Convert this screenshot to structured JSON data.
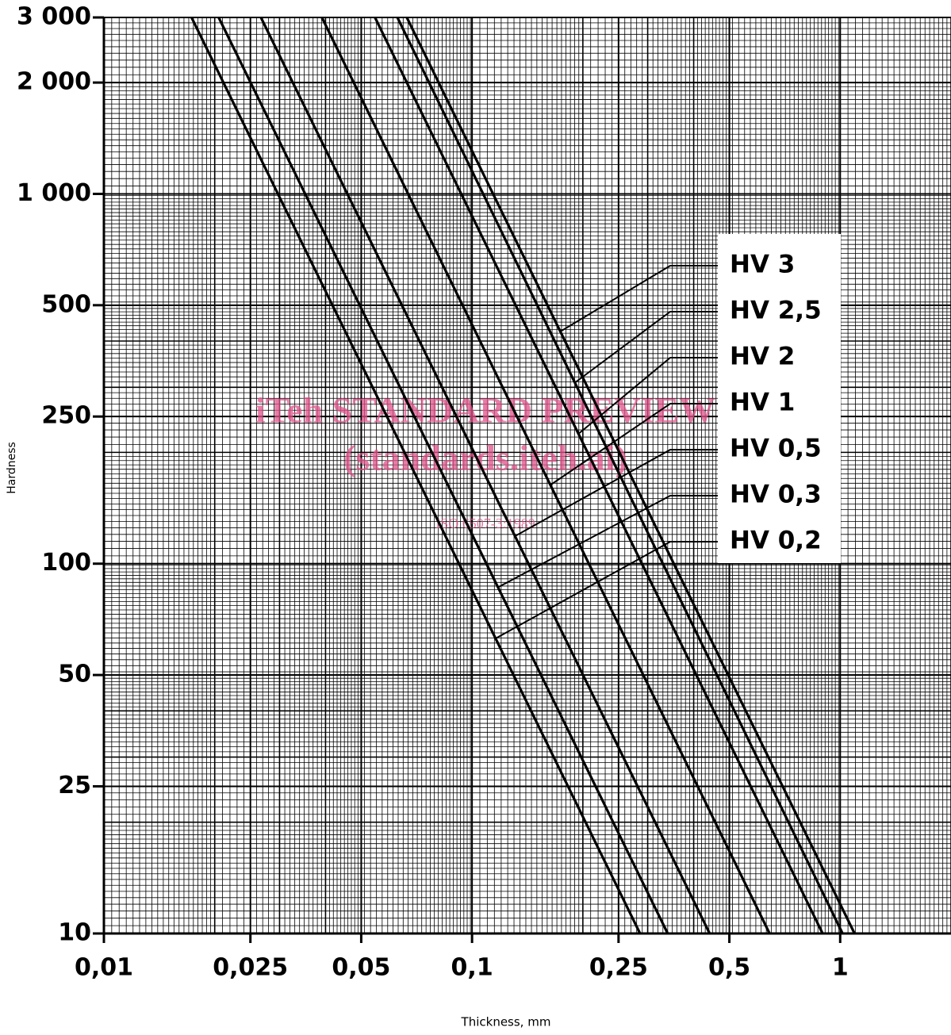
{
  "chart_data": {
    "type": "line",
    "xlabel": "Thickness, mm",
    "ylabel": "Hardness",
    "watermark": [
      "iTeh STANDARD PREVIEW",
      "(standards.iteh.ai)",
      "ISO 6507-3:1989"
    ],
    "xlog": true,
    "ylog": true,
    "grid": true,
    "legend": "right",
    "xlim": [
      0.01,
      2
    ],
    "ylim": [
      10,
      3000
    ],
    "xticks": [
      {
        "value": 0.01,
        "label": "0,01"
      },
      {
        "value": 0.025,
        "label": "0,025"
      },
      {
        "value": 0.05,
        "label": "0,05"
      },
      {
        "value": 0.1,
        "label": "0,1"
      },
      {
        "value": 0.25,
        "label": "0,25"
      },
      {
        "value": 0.5,
        "label": "0,5"
      },
      1
    ],
    "yticks": [
      10,
      25,
      50,
      100,
      250,
      500,
      {
        "value": 1000,
        "label": "1 000"
      },
      {
        "value": 2000,
        "label": "2 000"
      },
      {
        "value": 3000,
        "label": "3 000"
      }
    ],
    "series": [
      {
        "name": "HV 3",
        "color": "#000000",
        "x": [
          0.0665,
          1.094
        ],
        "values": [
          3000,
          10
        ]
      },
      {
        "name": "HV 2,5",
        "color": "#000000",
        "x": [
          0.0627,
          1.015
        ],
        "values": [
          3000,
          10
        ]
      },
      {
        "name": "HV 2",
        "color": "#000000",
        "x": [
          0.0545,
          0.896
        ],
        "values": [
          3000,
          10
        ]
      },
      {
        "name": "HV 1",
        "color": "#000000",
        "x": [
          0.0391,
          0.643
        ],
        "values": [
          3000,
          10
        ]
      },
      {
        "name": "HV 0,5",
        "color": "#000000",
        "x": [
          0.0267,
          0.442
        ],
        "values": [
          3000,
          10
        ]
      },
      {
        "name": "HV 0,3",
        "color": "#000000",
        "x": [
          0.0205,
          0.34
        ],
        "values": [
          3000,
          10
        ]
      },
      {
        "name": "HV 0,2",
        "color": "#000000",
        "x": [
          0.0173,
          0.286
        ],
        "values": [
          3000,
          10
        ]
      }
    ]
  }
}
